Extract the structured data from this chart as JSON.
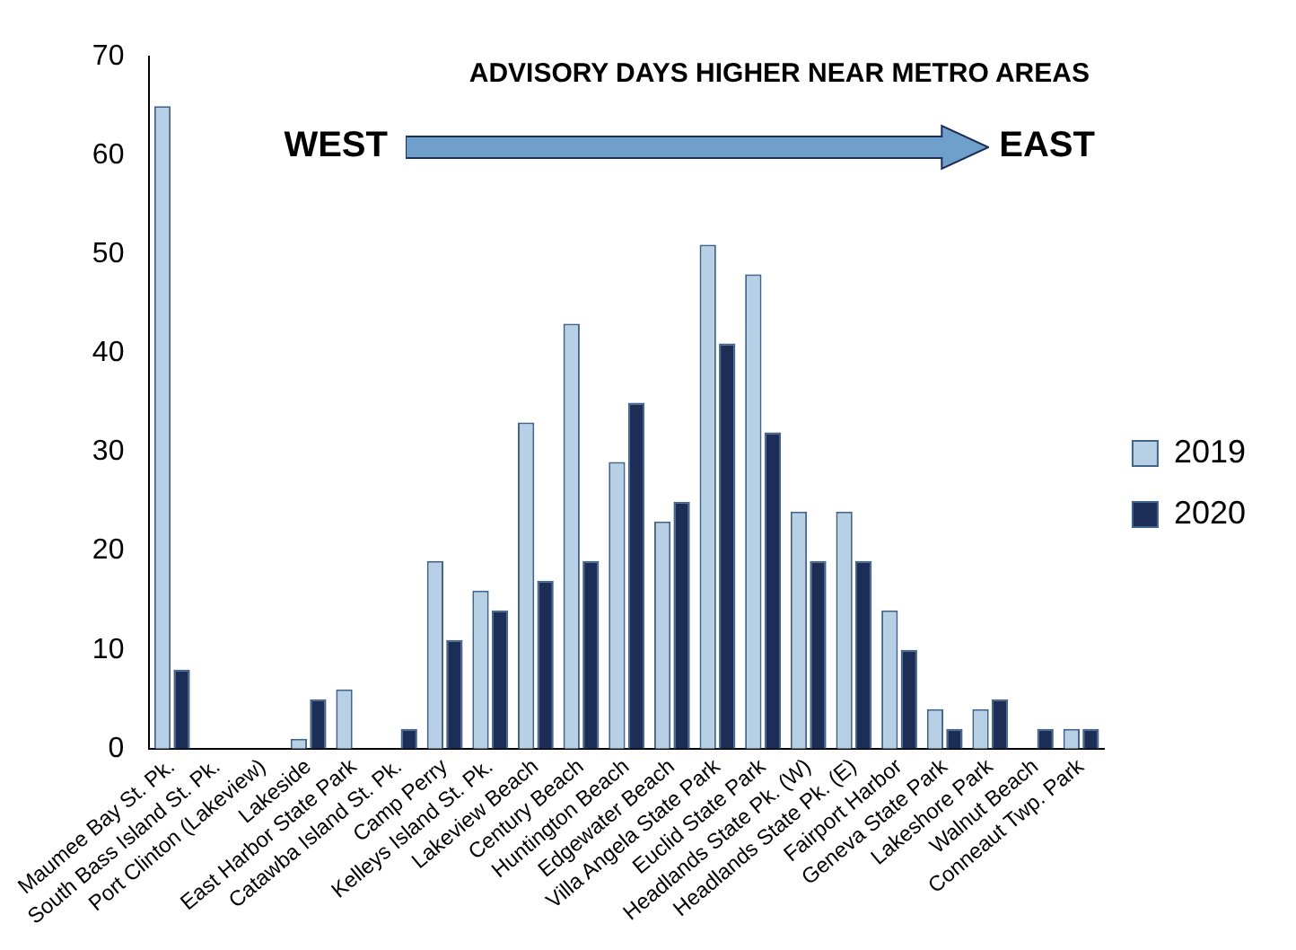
{
  "chart_data": {
    "type": "bar",
    "title": "ADVISORY DAYS HIGHER NEAR METRO AREAS",
    "annotations": [
      "WEST",
      "EAST"
    ],
    "categories": [
      "Maumee Bay St. Pk.",
      "South Bass Island St. Pk.",
      "Port Clinton (Lakeview)",
      "Lakeside",
      "East Harbor State Park",
      "Catawba Island St. Pk.",
      "Camp Perry",
      "Kelleys Island St. Pk.",
      "Lakeview Beach",
      "Century Beach",
      "Huntington Beach",
      "Edgewater Beach",
      "Villa Angela State Park",
      "Euclid State Park",
      "Headlands State Pk. (W)",
      "Headlands State Pk. (E)",
      "Fairport Harbor",
      "Geneva State Park",
      "Lakeshore Park",
      "Walnut Beach",
      "Conneaut Twp. Park"
    ],
    "series": [
      {
        "name": "2019",
        "color": "#b8d0e6",
        "values": [
          65,
          0,
          0,
          1,
          6,
          0,
          19,
          16,
          33,
          43,
          29,
          23,
          51,
          48,
          24,
          24,
          14,
          4,
          4,
          0,
          2
        ]
      },
      {
        "name": "2020",
        "color": "#1c2e57",
        "values": [
          8,
          0,
          0,
          5,
          0,
          2,
          11,
          14,
          17,
          19,
          35,
          25,
          41,
          32,
          19,
          19,
          10,
          2,
          5,
          2,
          2
        ]
      }
    ],
    "ylim": [
      0,
      70
    ],
    "yticks": [
      0,
      10,
      20,
      30,
      40,
      50,
      60,
      70
    ],
    "grid": false,
    "legend": "right"
  }
}
